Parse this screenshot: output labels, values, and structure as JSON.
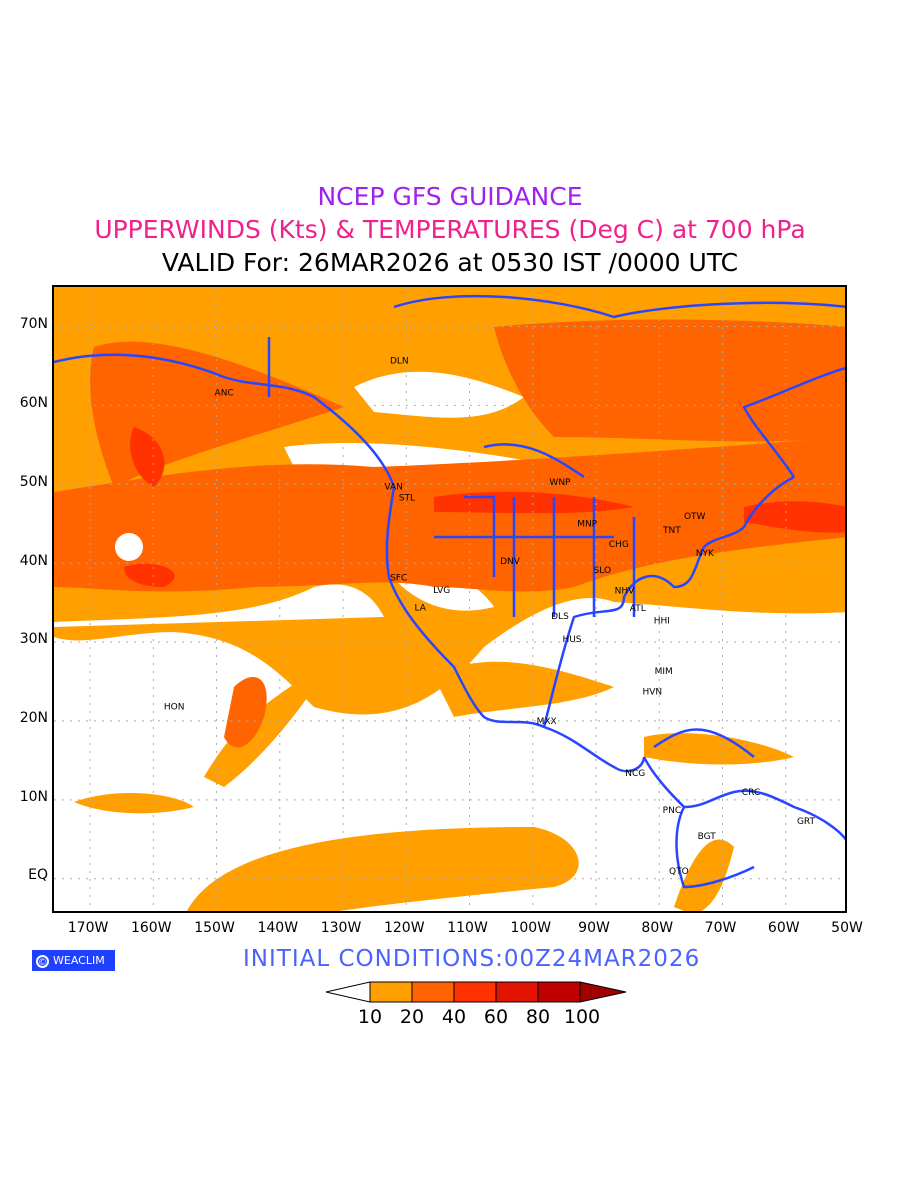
{
  "title": {
    "line1": "NCEP GFS GUIDANCE",
    "line2": "UPPERWINDS (Kts) & TEMPERATURES (Deg C) at 700 hPa",
    "line3": "VALID For: 26MAR2026 at 0530 IST /0000 UTC"
  },
  "axes": {
    "lat_labels": [
      "70N",
      "60N",
      "50N",
      "40N",
      "30N",
      "20N",
      "10N",
      "EQ"
    ],
    "lat_values": [
      70,
      60,
      50,
      40,
      30,
      20,
      10,
      0
    ],
    "lon_labels": [
      "170W",
      "160W",
      "150W",
      "140W",
      "130W",
      "120W",
      "110W",
      "100W",
      "90W",
      "80W",
      "70W",
      "60W",
      "50W"
    ],
    "lon_values": [
      -170,
      -160,
      -150,
      -140,
      -130,
      -120,
      -110,
      -100,
      -90,
      -80,
      -70,
      -60,
      -50
    ],
    "lon_range": [
      -175.7,
      -50
    ],
    "lat_range": [
      -4.6,
      75
    ]
  },
  "stations": [
    {
      "name": "DLN",
      "lon": -121.1,
      "lat": 65.7
    },
    {
      "name": "ANC",
      "lon": -148.8,
      "lat": 61.6
    },
    {
      "name": "VAN",
      "lon": -122,
      "lat": 49.7
    },
    {
      "name": "STL",
      "lon": -119.9,
      "lat": 48.3
    },
    {
      "name": "WNP",
      "lon": -95.7,
      "lat": 50.3
    },
    {
      "name": "MNP",
      "lon": -91.4,
      "lat": 45
    },
    {
      "name": "TNT",
      "lon": -78,
      "lat": 44.2
    },
    {
      "name": "OTW",
      "lon": -74.4,
      "lat": 46
    },
    {
      "name": "CHG",
      "lon": -86.4,
      "lat": 42.4
    },
    {
      "name": "NYK",
      "lon": -72.8,
      "lat": 41.3
    },
    {
      "name": "DNV",
      "lon": -103.6,
      "lat": 40.3
    },
    {
      "name": "SLO",
      "lon": -89,
      "lat": 39.1
    },
    {
      "name": "SFC",
      "lon": -121.2,
      "lat": 38.2
    },
    {
      "name": "LVG",
      "lon": -114.4,
      "lat": 36.6
    },
    {
      "name": "NHV",
      "lon": -85.5,
      "lat": 36.5
    },
    {
      "name": "LA",
      "lon": -117.8,
      "lat": 34.4
    },
    {
      "name": "ATL",
      "lon": -83.4,
      "lat": 34.3
    },
    {
      "name": "DLS",
      "lon": -95.7,
      "lat": 33.3
    },
    {
      "name": "HHI",
      "lon": -79.6,
      "lat": 32.7
    },
    {
      "name": "HUS",
      "lon": -93.8,
      "lat": 30.4
    },
    {
      "name": "MIM",
      "lon": -79.3,
      "lat": 26.3
    },
    {
      "name": "HVN",
      "lon": -81.1,
      "lat": 23.7
    },
    {
      "name": "HON",
      "lon": -156.7,
      "lat": 21.8
    },
    {
      "name": "MXX",
      "lon": -97.8,
      "lat": 20
    },
    {
      "name": "NCG",
      "lon": -83.8,
      "lat": 13.4
    },
    {
      "name": "CRC",
      "lon": -65.5,
      "lat": 11
    },
    {
      "name": "PNC",
      "lon": -78,
      "lat": 8.7
    },
    {
      "name": "GRT",
      "lon": -56.8,
      "lat": 7.3
    },
    {
      "name": "BGT",
      "lon": -72.5,
      "lat": 5.4
    },
    {
      "name": "QTO",
      "lon": -76.9,
      "lat": 1
    }
  ],
  "logo": {
    "symbol": "©",
    "text": "WEACLIM"
  },
  "initial_conditions": "INITIAL  CONDITIONS:00Z24MAR2026",
  "colorbar": {
    "labels": [
      "10",
      "20",
      "40",
      "60",
      "80",
      "100"
    ],
    "colors": [
      "#ffffff",
      "#ffa000",
      "#ff6400",
      "#ff3200",
      "#e01400",
      "#c00000",
      "#a00000"
    ]
  },
  "colors": {
    "coast": "#2a45ff",
    "grid": "#aaaaaa"
  }
}
